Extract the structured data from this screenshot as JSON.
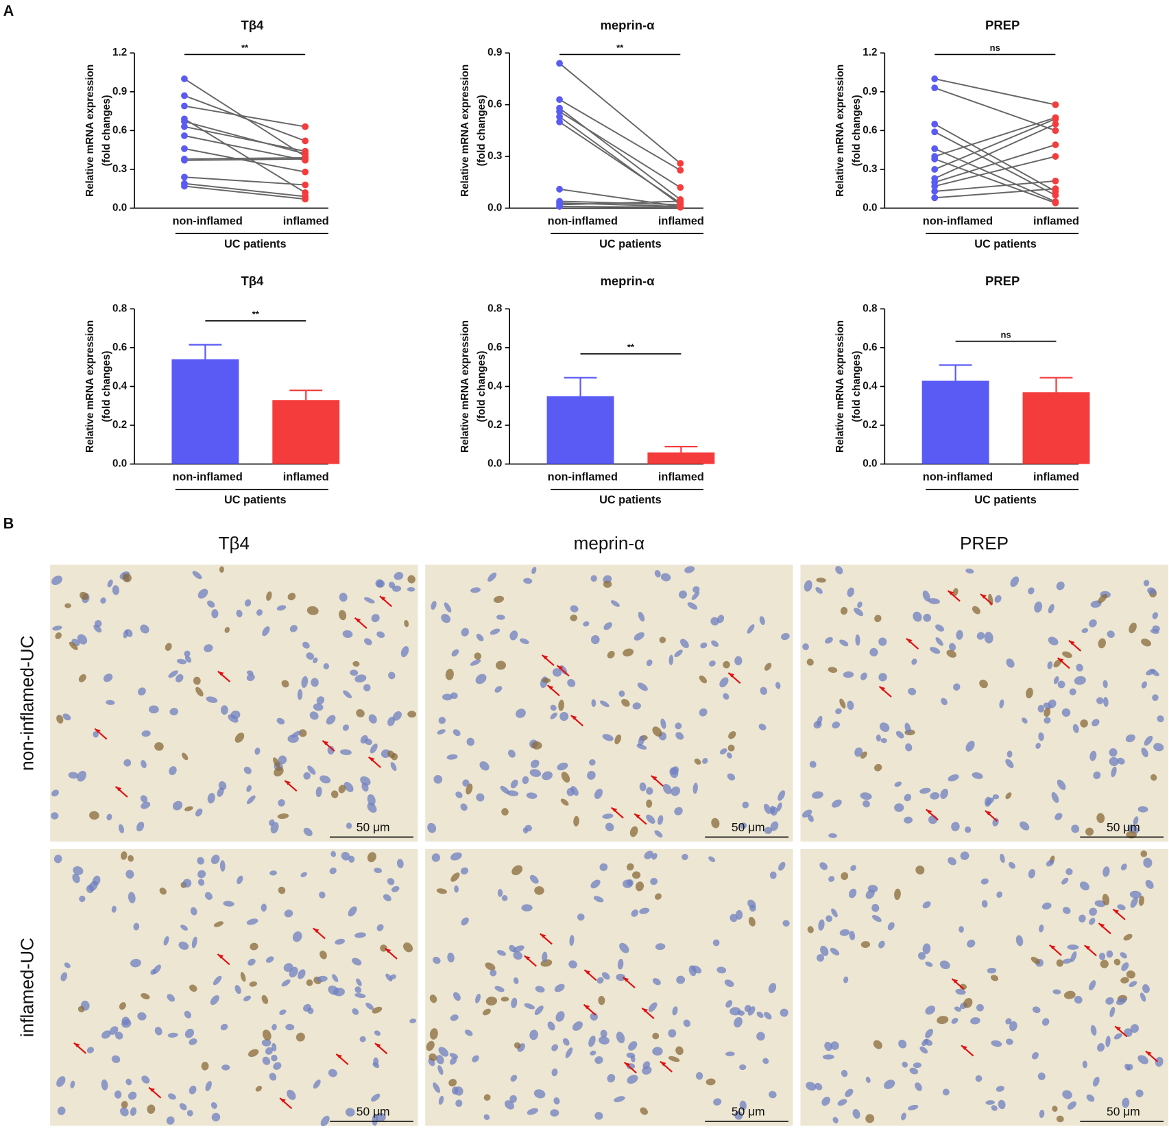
{
  "panel_labels": [
    "A",
    "B"
  ],
  "chart_data": [
    {
      "type": "paired",
      "title": "Tβ4",
      "ylabel": [
        "Relative mRNA expression",
        "(fold changes)"
      ],
      "categories": [
        "non-inflamed",
        "inflamed"
      ],
      "xlabel": "UC patients",
      "colors": [
        "#5a5af5",
        "#f53c3c"
      ],
      "values": [
        [
          1.0,
          0.4
        ],
        [
          0.87,
          0.52
        ],
        [
          0.79,
          0.63
        ],
        [
          0.69,
          0.12
        ],
        [
          0.67,
          0.42
        ],
        [
          0.63,
          0.44
        ],
        [
          0.56,
          0.37
        ],
        [
          0.46,
          0.28
        ],
        [
          0.38,
          0.39
        ],
        [
          0.37,
          0.38
        ],
        [
          0.24,
          0.18
        ],
        [
          0.19,
          0.09
        ],
        [
          0.17,
          0.07
        ]
      ],
      "ylim": [
        0,
        1.2
      ],
      "yticks": [
        {
          "value": 0,
          "label": "0.0"
        },
        0.3,
        0.6,
        0.9,
        1.2
      ],
      "significance": "**"
    },
    {
      "type": "paired",
      "title": "meprin-α",
      "ylabel": [
        "Relative mRNA expression",
        "(fold changes)"
      ],
      "categories": [
        "non-inflamed",
        "inflamed"
      ],
      "xlabel": "UC patients",
      "colors": [
        "#5a5af5",
        "#f53c3c"
      ],
      "values": [
        [
          0.84,
          0.26
        ],
        [
          0.63,
          0.22
        ],
        [
          0.58,
          0.05
        ],
        [
          0.56,
          0.12
        ],
        [
          0.53,
          0.02
        ],
        [
          0.5,
          0.03
        ],
        [
          0.11,
          0.01
        ],
        [
          0.04,
          0.02
        ],
        [
          0.03,
          0.01
        ],
        [
          0.01,
          0.005
        ],
        [
          0.02,
          0.04
        ]
      ],
      "ylim": [
        0,
        0.9
      ],
      "yticks": [
        {
          "value": 0,
          "label": "0.0"
        },
        0.3,
        0.6,
        0.9
      ],
      "significance": "**"
    },
    {
      "type": "paired",
      "title": "PREP",
      "ylabel": [
        "Relative mRNA expression",
        "(fold changes)"
      ],
      "categories": [
        "non-inflamed",
        "inflamed"
      ],
      "xlabel": "UC patients",
      "colors": [
        "#5a5af5",
        "#f53c3c"
      ],
      "values": [
        [
          1.0,
          0.8
        ],
        [
          0.93,
          0.6
        ],
        [
          0.65,
          0.13
        ],
        [
          0.59,
          0.1
        ],
        [
          0.46,
          0.05
        ],
        [
          0.38,
          0.04
        ],
        [
          0.3,
          0.69
        ],
        [
          0.23,
          0.65
        ],
        [
          0.2,
          0.49
        ],
        [
          0.17,
          0.4
        ],
        [
          0.13,
          0.21
        ],
        [
          0.08,
          0.15
        ],
        [
          0.4,
          0.7
        ]
      ],
      "ylim": [
        0,
        1.2
      ],
      "yticks": [
        {
          "value": 0,
          "label": "0.0"
        },
        0.3,
        0.6,
        0.9,
        1.2
      ],
      "significance": "ns"
    },
    {
      "type": "bar",
      "title": "Tβ4",
      "ylabel": [
        "Relative mRNA expression",
        "(fold changes)"
      ],
      "categories": [
        "non-inflamed",
        "inflamed"
      ],
      "xlabel": "UC patients",
      "colors": [
        "#5a5af5",
        "#f53c3c"
      ],
      "values": [
        0.54,
        0.33
      ],
      "errors": [
        0.075,
        0.05
      ],
      "ylim": [
        0,
        0.8
      ],
      "yticks": [
        {
          "value": 0,
          "label": "0.0"
        },
        0.2,
        0.4,
        0.6,
        0.8
      ],
      "significance": "**"
    },
    {
      "type": "bar",
      "title": "meprin-α",
      "ylabel": [
        "Relative mRNA expression",
        "(fold changes)"
      ],
      "categories": [
        "non-inflamed",
        "inflamed"
      ],
      "xlabel": "UC patients",
      "colors": [
        "#5a5af5",
        "#f53c3c"
      ],
      "values": [
        0.35,
        0.06
      ],
      "errors": [
        0.095,
        0.03
      ],
      "ylim": [
        0,
        0.8
      ],
      "yticks": [
        {
          "value": 0,
          "label": "0.0"
        },
        0.2,
        0.4,
        0.6,
        0.8
      ],
      "significance": "**"
    },
    {
      "type": "bar",
      "title": "PREP",
      "ylabel": [
        "Relative mRNA expression",
        "(fold changes)"
      ],
      "categories": [
        "non-inflamed",
        "inflamed"
      ],
      "xlabel": "UC patients",
      "colors": [
        "#5a5af5",
        "#f53c3c"
      ],
      "values": [
        0.43,
        0.37
      ],
      "errors": [
        0.08,
        0.075
      ],
      "ylim": [
        0,
        0.8
      ],
      "yticks": [
        {
          "value": 0,
          "label": "0.0"
        },
        0.2,
        0.4,
        0.6,
        0.8
      ],
      "significance": "ns"
    }
  ],
  "micrographs": {
    "columns": [
      "Tβ4",
      "meprin-α",
      "PREP"
    ],
    "rows": [
      "non-inflamed-UC",
      "inflamed-UC"
    ],
    "scale_bar": "50 μm"
  }
}
